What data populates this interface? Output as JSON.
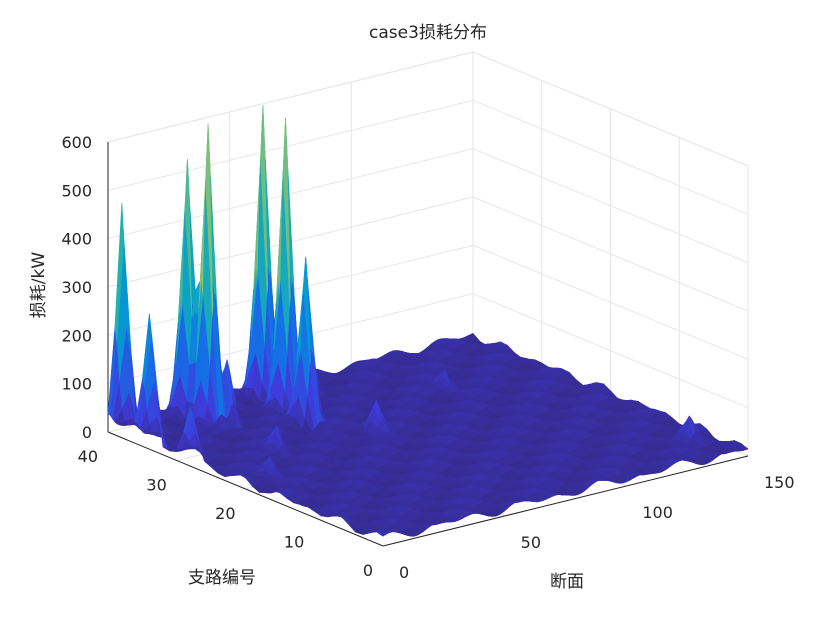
{
  "chart_data": {
    "type": "surface",
    "title": "case3损耗分布",
    "xlabel": "断面",
    "ylabel": "支路编号",
    "zlabel": "损耗/kW",
    "xlim": [
      0,
      150
    ],
    "ylim": [
      0,
      40
    ],
    "zlim": [
      0,
      600
    ],
    "xticks": [
      "0",
      "50",
      "100",
      "150"
    ],
    "yticks": [
      "0",
      "10",
      "20",
      "30",
      "40"
    ],
    "zticks": [
      "0",
      "100",
      "200",
      "300",
      "400",
      "500",
      "600"
    ],
    "grid": true,
    "colormap": "parula",
    "baseline_level": 15,
    "peaks": [
      {
        "x": 0,
        "y": 38,
        "z": 480
      },
      {
        "x": 0,
        "y": 34,
        "z": 260
      },
      {
        "x": 27,
        "y": 38,
        "z": 530
      },
      {
        "x": 27,
        "y": 35,
        "z": 620
      },
      {
        "x": 32,
        "y": 34,
        "z": 130
      },
      {
        "x": 58,
        "y": 38,
        "z": 600
      },
      {
        "x": 56,
        "y": 34,
        "z": 590
      },
      {
        "x": 53,
        "y": 30,
        "z": 340
      },
      {
        "x": 0,
        "y": 28,
        "z": 110
      },
      {
        "x": 27,
        "y": 25,
        "z": 60
      },
      {
        "x": 10,
        "y": 20,
        "z": 50
      },
      {
        "x": 65,
        "y": 24,
        "z": 70
      },
      {
        "x": 75,
        "y": 37,
        "z": 55
      },
      {
        "x": 110,
        "y": 30,
        "z": 45
      },
      {
        "x": 140,
        "y": 5,
        "z": 40
      }
    ]
  }
}
